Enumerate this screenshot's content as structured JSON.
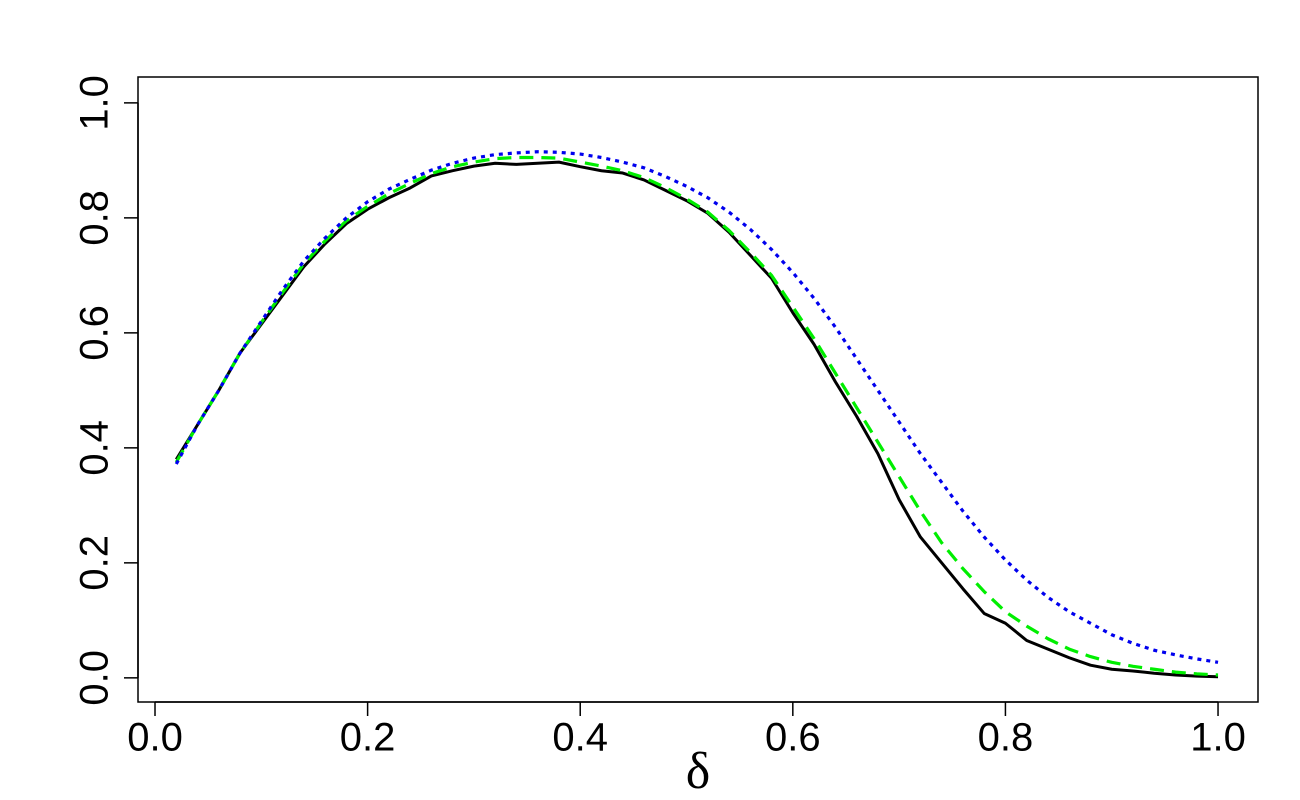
{
  "chart_data": {
    "type": "line",
    "x_label": "δ",
    "x": [
      0.02,
      0.04,
      0.06,
      0.08,
      0.1,
      0.12,
      0.14,
      0.16,
      0.18,
      0.2,
      0.22,
      0.24,
      0.26,
      0.28,
      0.3,
      0.32,
      0.34,
      0.36,
      0.38,
      0.4,
      0.42,
      0.44,
      0.46,
      0.48,
      0.5,
      0.52,
      0.54,
      0.56,
      0.58,
      0.6,
      0.62,
      0.64,
      0.66,
      0.68,
      0.7,
      0.72,
      0.74,
      0.76,
      0.78,
      0.8,
      0.82,
      0.84,
      0.86,
      0.88,
      0.9,
      0.92,
      0.94,
      0.96,
      0.98,
      1.0
    ],
    "series": [
      {
        "color": "#000000",
        "dash": "solid",
        "values": [
          0.38,
          0.44,
          0.5,
          0.565,
          0.615,
          0.665,
          0.715,
          0.755,
          0.79,
          0.815,
          0.835,
          0.852,
          0.873,
          0.882,
          0.89,
          0.895,
          0.893,
          0.895,
          0.897,
          0.889,
          0.882,
          0.878,
          0.866,
          0.848,
          0.83,
          0.808,
          0.775,
          0.735,
          0.695,
          0.635,
          0.58,
          0.515,
          0.455,
          0.39,
          0.31,
          0.245,
          0.2,
          0.155,
          0.112,
          0.095,
          0.065,
          0.05,
          0.035,
          0.022,
          0.015,
          0.012,
          0.008,
          0.005,
          0.003,
          0.002
        ]
      },
      {
        "color": "#00ee00",
        "dash": "dashed",
        "values": [
          0.375,
          0.44,
          0.5,
          0.565,
          0.618,
          0.67,
          0.72,
          0.76,
          0.795,
          0.82,
          0.842,
          0.86,
          0.877,
          0.889,
          0.897,
          0.903,
          0.905,
          0.905,
          0.904,
          0.897,
          0.89,
          0.882,
          0.87,
          0.853,
          0.833,
          0.81,
          0.778,
          0.74,
          0.7,
          0.645,
          0.59,
          0.53,
          0.47,
          0.41,
          0.35,
          0.29,
          0.235,
          0.19,
          0.15,
          0.115,
          0.09,
          0.068,
          0.05,
          0.037,
          0.027,
          0.02,
          0.015,
          0.01,
          0.007,
          0.005
        ]
      },
      {
        "color": "#0000ee",
        "dash": "dotted",
        "values": [
          0.372,
          0.44,
          0.5,
          0.565,
          0.62,
          0.675,
          0.725,
          0.765,
          0.8,
          0.828,
          0.85,
          0.867,
          0.883,
          0.895,
          0.904,
          0.91,
          0.913,
          0.915,
          0.914,
          0.911,
          0.905,
          0.897,
          0.887,
          0.872,
          0.855,
          0.835,
          0.81,
          0.78,
          0.745,
          0.705,
          0.66,
          0.61,
          0.555,
          0.5,
          0.445,
          0.39,
          0.34,
          0.29,
          0.245,
          0.205,
          0.17,
          0.14,
          0.115,
          0.095,
          0.075,
          0.06,
          0.048,
          0.04,
          0.033,
          0.027
        ]
      }
    ],
    "xlim": [
      -0.016,
      1.0376
    ],
    "ylim": [
      -0.042,
      1.045
    ],
    "xticks": [
      {
        "value": 0,
        "label": "0.0"
      },
      0.2,
      0.4,
      0.6,
      0.8,
      {
        "value": 1,
        "label": "1.0"
      }
    ],
    "yticks": [
      {
        "value": 0,
        "label": "0.0"
      },
      0.2,
      0.4,
      0.6,
      0.8,
      {
        "value": 1,
        "label": "1.0"
      }
    ]
  }
}
